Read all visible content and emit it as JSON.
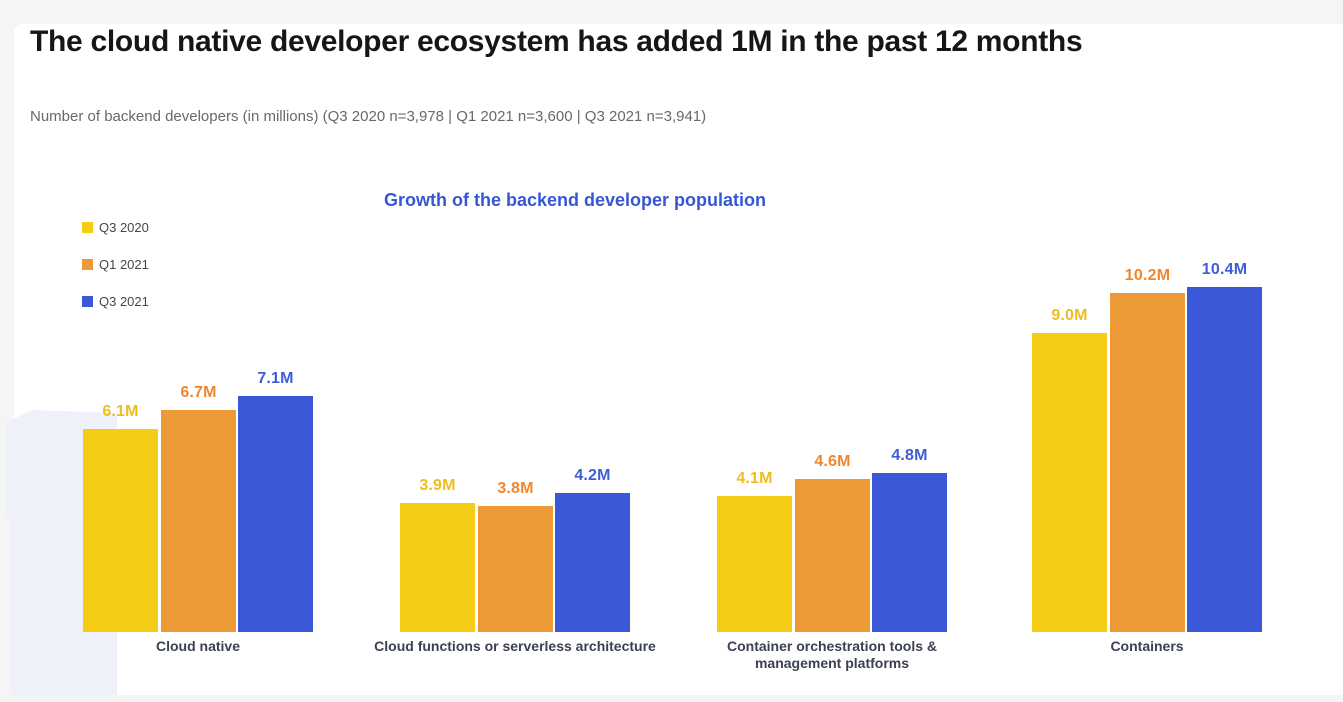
{
  "page": {
    "title": "The cloud native developer ecosystem has added 1M in the past 12 months",
    "subtitle": "Number of backend developers (in millions) (Q3 2020 n=3,978 | Q1 2021 n=3,600 | Q3 2021 n=3,941)"
  },
  "chart_data": {
    "type": "bar",
    "title": "Growth of the backend developer population",
    "xlabel": "",
    "ylabel": "Number of backend developers (millions)",
    "ylim": [
      0,
      11
    ],
    "grid": false,
    "legend_position": "top-left",
    "categories": [
      "Cloud native",
      "Cloud functions or serverless architecture",
      "Container orchestration tools & management platforms",
      "Containers"
    ],
    "category_label_lines": [
      [
        "Cloud native"
      ],
      [
        "Cloud functions or serverless architecture"
      ],
      [
        "Container orchestration tools &",
        "management platforms"
      ],
      [
        "Containers"
      ]
    ],
    "series": [
      {
        "name": "Q3 2020",
        "color": "#f6cd16",
        "label_color": "#efbe1d",
        "values": [
          6.1,
          3.9,
          4.1,
          9.0
        ],
        "labels": [
          "6.1M",
          "3.9M",
          "4.1M",
          "9.0M"
        ]
      },
      {
        "name": "Q1 2021",
        "color": "#eb9a35",
        "label_color": "#f0872e",
        "values": [
          6.7,
          3.8,
          4.6,
          10.2
        ],
        "labels": [
          "6.7M",
          "3.8M",
          "4.6M",
          "10.2M"
        ]
      },
      {
        "name": "Q3 2021",
        "color": "#3a58d8",
        "label_color": "#3e5ed6",
        "values": [
          7.1,
          4.2,
          4.8,
          10.4
        ],
        "labels": [
          "7.1M",
          "4.2M",
          "4.8M",
          "10.4M"
        ]
      }
    ],
    "patterned_category": "Containers",
    "unit": "M",
    "colors": {
      "chart_title": "#3656d6",
      "category_label": "#3a4150",
      "legend_text": "#46464e",
      "decorative_shape": "#eef1f9"
    }
  }
}
